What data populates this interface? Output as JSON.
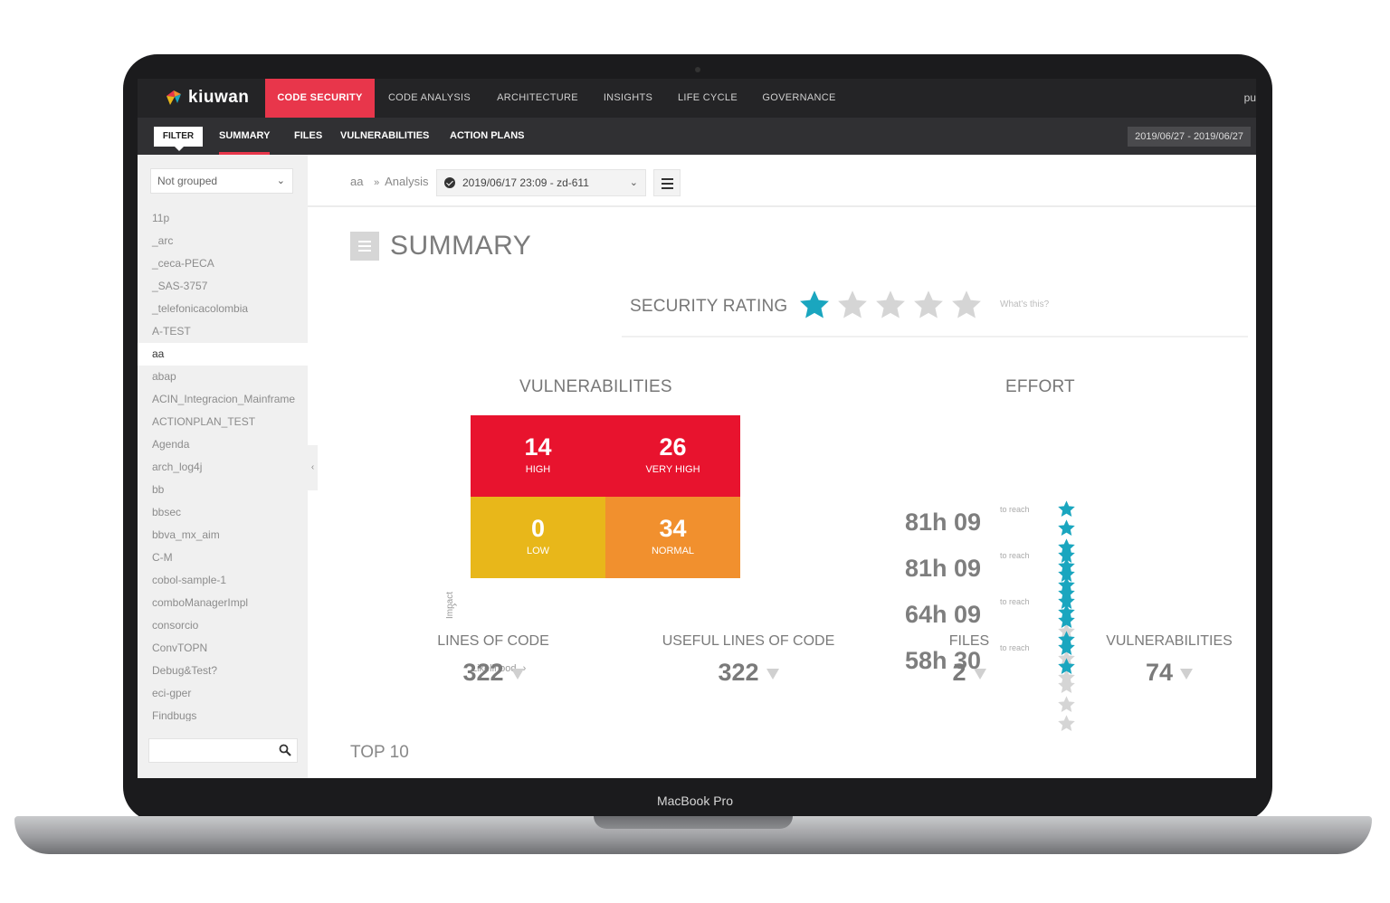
{
  "device": {
    "label": "MacBook Pro"
  },
  "app": {
    "brand": "kiuwan"
  },
  "topnav": {
    "items": [
      "CODE SECURITY",
      "CODE ANALYSIS",
      "ARCHITECTURE",
      "INSIGHTS",
      "LIFE CYCLE",
      "GOVERNANCE"
    ],
    "user_fragment": "pu"
  },
  "subnav": {
    "filter_label": "FILTER",
    "items": [
      "SUMMARY",
      "FILES",
      "VULNERABILITIES",
      "ACTION PLANS"
    ],
    "date_range": "2019/06/27 - 2019/06/27"
  },
  "sidebar": {
    "group_select": "Not grouped",
    "projects": [
      "11p",
      "_arc",
      "_ceca-PECA",
      "_SAS-3757",
      "_telefonicacolombia",
      "A-TEST",
      "aa",
      "abap",
      "ACIN_Integracion_Mainframe",
      "ACTIONPLAN_TEST",
      "Agenda",
      "arch_log4j",
      "bb",
      "bbsec",
      "bbva_mx_aim",
      "C-M",
      "cobol-sample-1",
      "comboManagerImpl",
      "consorcio",
      "ConvTOPN",
      "Debug&Test?",
      "eci-gper",
      "Findbugs"
    ],
    "selected_index": 6,
    "search_placeholder": ""
  },
  "breadcrumb": {
    "project": "aa",
    "separator": "»",
    "section": "Analysis",
    "analysis_value": "2019/06/17 23:09 - zd-611"
  },
  "summary": {
    "title": "SUMMARY",
    "security_rating_label": "SECURITY RATING",
    "security_rating": 1,
    "security_rating_max": 5,
    "whats_this": "What's this?"
  },
  "vulnerabilities": {
    "title": "VULNERABILITIES",
    "axis_impact": "Impact",
    "axis_likelihood": "Likelihood",
    "cells": [
      {
        "value": "14",
        "label": "HIGH",
        "color": "#e8132e"
      },
      {
        "value": "26",
        "label": "VERY HIGH",
        "color": "#e8132e"
      },
      {
        "value": "0",
        "label": "LOW",
        "color": "#e8b71a"
      },
      {
        "value": "34",
        "label": "NORMAL",
        "color": "#f1902e"
      }
    ]
  },
  "effort": {
    "title": "EFFORT",
    "rows": [
      {
        "value": "81h 09",
        "label": "to reach",
        "stars": 5
      },
      {
        "value": "81h 09",
        "label": "to reach",
        "stars": 4
      },
      {
        "value": "64h 09",
        "label": "to reach",
        "stars": 3
      },
      {
        "value": "58h 30",
        "label": "to reach",
        "stars": 2
      }
    ]
  },
  "metrics": [
    {
      "label": "LINES OF CODE",
      "value": "322"
    },
    {
      "label": "USEFUL LINES OF CODE",
      "value": "322"
    },
    {
      "label": "FILES",
      "value": "2"
    },
    {
      "label": "VULNERABILITIES",
      "value": "74"
    }
  ],
  "top10_label": "TOP 10",
  "colors": {
    "accent": "#e8364b",
    "star_filled": "#1aa6bf",
    "star_empty": "#d5d5d5",
    "nav_bg": "#242426",
    "subnav_bg": "#303033"
  }
}
